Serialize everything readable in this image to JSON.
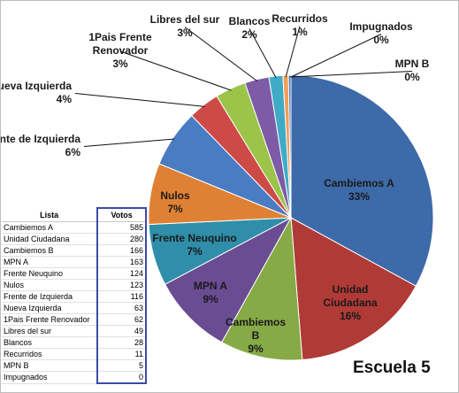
{
  "chart_data": {
    "type": "pie",
    "title": "Escuela 5",
    "series_header": "Votos",
    "category_header": "Lista",
    "categories": [
      "Cambiemos A",
      "Unidad Ciudadana",
      "Cambiemos B",
      "MPN A",
      "Frente Neuquino",
      "Nulos",
      "Frente de Izquierda",
      "Nueva Izquierda",
      "1Pais Frente Renovador",
      "Libres del sur",
      "Blancos",
      "Recurridos",
      "MPN B",
      "Impugnados"
    ],
    "values": [
      585,
      280,
      166,
      163,
      124,
      123,
      116,
      63,
      62,
      49,
      28,
      11,
      5,
      0
    ],
    "slice_labels": [
      {
        "name": "Cambiemos A",
        "pct": "33%"
      },
      {
        "name": "Unidad Ciudadana",
        "pct": "16%"
      },
      {
        "name": "Cambiemos B",
        "pct": "9%"
      },
      {
        "name": "MPN A",
        "pct": "9%"
      },
      {
        "name": "Frente Neuquino",
        "pct": "7%"
      },
      {
        "name": "Nulos",
        "pct": "7%"
      },
      {
        "name": "Frente de Izquierda",
        "pct": "6%"
      },
      {
        "name": "Nueva Izquierda",
        "pct": "4%"
      },
      {
        "name": "1Pais Frente Renovador",
        "pct": "3%"
      },
      {
        "name": "Libres del sur",
        "pct": "3%"
      },
      {
        "name": "Blancos",
        "pct": "2%"
      },
      {
        "name": "Recurridos",
        "pct": "1%"
      },
      {
        "name": "MPN B",
        "pct": "0%"
      },
      {
        "name": "Impugnados",
        "pct": "0%"
      }
    ],
    "colors": [
      "#3d6aa8",
      "#b03a36",
      "#86aa45",
      "#6a4c93",
      "#2f8ea9",
      "#df8135",
      "#4a7cc2",
      "#cd4a47",
      "#9bc449",
      "#7d5ba6",
      "#3fabc7",
      "#f59d56",
      "#4a78b9",
      "#c85450"
    ]
  }
}
